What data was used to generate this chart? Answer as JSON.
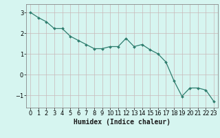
{
  "x": [
    0,
    1,
    2,
    3,
    4,
    5,
    6,
    7,
    8,
    9,
    10,
    11,
    12,
    13,
    14,
    15,
    16,
    17,
    18,
    19,
    20,
    21,
    22,
    23
  ],
  "y": [
    3.0,
    2.75,
    2.55,
    2.22,
    2.22,
    1.85,
    1.65,
    1.45,
    1.25,
    1.25,
    1.35,
    1.35,
    1.75,
    1.35,
    1.45,
    1.2,
    1.0,
    0.6,
    -0.3,
    -1.05,
    -0.65,
    -0.65,
    -0.75,
    -1.3
  ],
  "line_color": "#2e7d6e",
  "marker": "D",
  "marker_size": 2.0,
  "bg_color": "#d6f5f0",
  "grid_color": "#c8b8b8",
  "xlabel": "Humidex (Indice chaleur)",
  "ylabel": "",
  "title": "",
  "xlim": [
    -0.5,
    23.5
  ],
  "ylim": [
    -1.6,
    3.4
  ],
  "xticks": [
    0,
    1,
    2,
    3,
    4,
    5,
    6,
    7,
    8,
    9,
    10,
    11,
    12,
    13,
    14,
    15,
    16,
    17,
    18,
    19,
    20,
    21,
    22,
    23
  ],
  "yticks": [
    -1,
    0,
    1,
    2,
    3
  ],
  "tick_fontsize": 6.0,
  "xlabel_fontsize": 7.0
}
